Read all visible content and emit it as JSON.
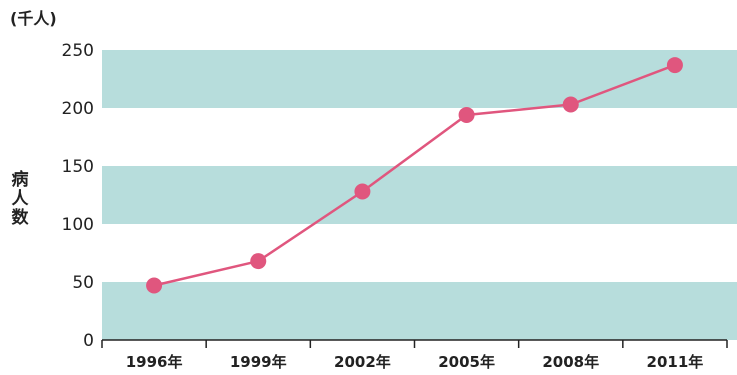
{
  "chart_data": {
    "type": "line",
    "categories": [
      "1996年",
      "1999年",
      "2002年",
      "2005年",
      "2008年",
      "2011年"
    ],
    "values": [
      47,
      68,
      128,
      194,
      203,
      237
    ],
    "ylim": [
      0,
      250
    ],
    "yticks": [
      "0",
      "50",
      "100",
      "150",
      "200",
      "250"
    ],
    "unit": "(千人)",
    "ylabel": "病人数",
    "grid": "alternating horizontal bands",
    "colors": {
      "band": "#b7dddc",
      "line": "#e0567e",
      "point": "#e0567e"
    }
  }
}
